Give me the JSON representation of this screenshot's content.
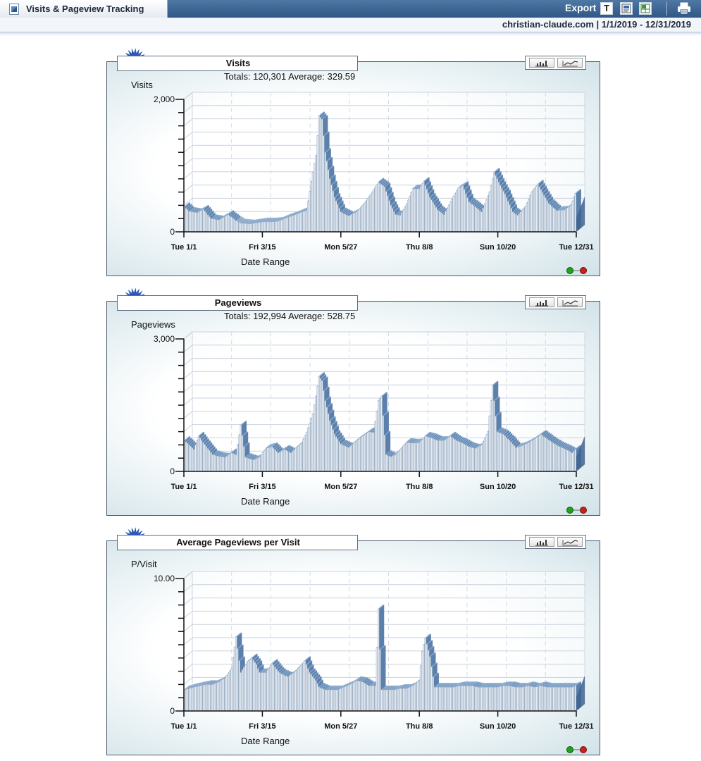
{
  "header": {
    "tab_title": "Visits & Pageview Tracking",
    "export_label": "Export",
    "export_text_label": "T",
    "site_and_range": "christian-claude.com  |  1/1/2019 - 12/31/2019"
  },
  "colors": {
    "bar_front": "#d9e2ee",
    "bar_side": "#5a7ea8",
    "bar_top": "#8eadd0",
    "grid": "#c9d2dc"
  },
  "chart_data": [
    {
      "type": "bar",
      "title": "Visits",
      "totals": "Totals: 120,301   Average: 329.59",
      "ylabel": "Visits",
      "xlabel": "Date Range",
      "ylim": [
        0,
        2000
      ],
      "y_tick_labels": [
        "0",
        "2,000"
      ],
      "x_tick_labels": [
        "Tue 1/1",
        "Fri 3/15",
        "Mon 5/27",
        "Thu 8/8",
        "Sun 10/20",
        "Tue 12/31"
      ],
      "knots": [
        [
          0,
          380
        ],
        [
          3,
          310
        ],
        [
          8,
          290
        ],
        [
          12,
          340
        ],
        [
          17,
          200
        ],
        [
          22,
          180
        ],
        [
          28,
          260
        ],
        [
          33,
          170
        ],
        [
          36,
          130
        ],
        [
          42,
          120
        ],
        [
          50,
          150
        ],
        [
          56,
          150
        ],
        [
          60,
          160
        ],
        [
          65,
          210
        ],
        [
          70,
          250
        ],
        [
          75,
          300
        ],
        [
          78,
          320
        ],
        [
          82,
          900
        ],
        [
          84,
          1150
        ],
        [
          86,
          1750
        ],
        [
          88,
          1700
        ],
        [
          90,
          1200
        ],
        [
          93,
          800
        ],
        [
          96,
          520
        ],
        [
          100,
          300
        ],
        [
          105,
          240
        ],
        [
          110,
          300
        ],
        [
          115,
          430
        ],
        [
          120,
          600
        ],
        [
          124,
          750
        ],
        [
          128,
          680
        ],
        [
          132,
          400
        ],
        [
          135,
          260
        ],
        [
          138,
          250
        ],
        [
          142,
          420
        ],
        [
          146,
          650
        ],
        [
          150,
          650
        ],
        [
          153,
          760
        ],
        [
          157,
          520
        ],
        [
          162,
          330
        ],
        [
          166,
          260
        ],
        [
          170,
          450
        ],
        [
          175,
          660
        ],
        [
          178,
          700
        ],
        [
          182,
          450
        ],
        [
          186,
          380
        ],
        [
          190,
          300
        ],
        [
          195,
          600
        ],
        [
          198,
          900
        ],
        [
          202,
          700
        ],
        [
          205,
          570
        ],
        [
          210,
          300
        ],
        [
          213,
          250
        ],
        [
          218,
          380
        ],
        [
          222,
          600
        ],
        [
          226,
          720
        ],
        [
          229,
          590
        ],
        [
          233,
          430
        ],
        [
          238,
          320
        ],
        [
          243,
          330
        ],
        [
          247,
          400
        ],
        [
          250,
          580
        ]
      ]
    },
    {
      "type": "bar",
      "title": "Pageviews",
      "totals": "Totals: 192,994   Average: 528.75",
      "ylabel": "Pageviews",
      "xlabel": "Date Range",
      "ylim": [
        0,
        3000
      ],
      "y_tick_labels": [
        "0",
        "3,000"
      ],
      "x_tick_labels": [
        "Tue 1/1",
        "Fri 3/15",
        "Mon 5/27",
        "Thu 8/8",
        "Sun 10/20",
        "Tue 12/31"
      ],
      "knots": [
        [
          0,
          700
        ],
        [
          3,
          600
        ],
        [
          6,
          500
        ],
        [
          9,
          800
        ],
        [
          12,
          650
        ],
        [
          15,
          520
        ],
        [
          18,
          380
        ],
        [
          22,
          340
        ],
        [
          26,
          320
        ],
        [
          30,
          420
        ],
        [
          33,
          380
        ],
        [
          36,
          1050
        ],
        [
          39,
          320
        ],
        [
          44,
          260
        ],
        [
          48,
          320
        ],
        [
          52,
          520
        ],
        [
          56,
          560
        ],
        [
          60,
          420
        ],
        [
          64,
          500
        ],
        [
          68,
          420
        ],
        [
          72,
          560
        ],
        [
          75,
          650
        ],
        [
          78,
          880
        ],
        [
          82,
          1300
        ],
        [
          84,
          1700
        ],
        [
          86,
          2150
        ],
        [
          88,
          2050
        ],
        [
          90,
          1600
        ],
        [
          93,
          1150
        ],
        [
          96,
          840
        ],
        [
          100,
          620
        ],
        [
          105,
          540
        ],
        [
          110,
          700
        ],
        [
          114,
          800
        ],
        [
          118,
          900
        ],
        [
          121,
          880
        ],
        [
          124,
          1600
        ],
        [
          126,
          1700
        ],
        [
          129,
          380
        ],
        [
          132,
          330
        ],
        [
          135,
          380
        ],
        [
          138,
          500
        ],
        [
          142,
          660
        ],
        [
          146,
          640
        ],
        [
          150,
          650
        ],
        [
          154,
          800
        ],
        [
          158,
          760
        ],
        [
          162,
          700
        ],
        [
          166,
          700
        ],
        [
          170,
          800
        ],
        [
          174,
          700
        ],
        [
          178,
          640
        ],
        [
          182,
          560
        ],
        [
          186,
          520
        ],
        [
          190,
          600
        ],
        [
          194,
          900
        ],
        [
          197,
          1950
        ],
        [
          200,
          900
        ],
        [
          204,
          840
        ],
        [
          208,
          700
        ],
        [
          212,
          540
        ],
        [
          216,
          580
        ],
        [
          220,
          650
        ],
        [
          224,
          740
        ],
        [
          228,
          840
        ],
        [
          232,
          740
        ],
        [
          236,
          640
        ],
        [
          240,
          560
        ],
        [
          244,
          500
        ],
        [
          248,
          420
        ],
        [
          250,
          500
        ]
      ]
    },
    {
      "type": "bar",
      "title": "Average Pageviews per Visit",
      "totals": "",
      "ylabel": "P/Visit",
      "xlabel": "Date Range",
      "ylim": [
        0,
        10
      ],
      "y_tick_labels": [
        "0",
        "10.00"
      ],
      "x_tick_labels": [
        "Tue 1/1",
        "Fri 3/15",
        "Mon 5/27",
        "Thu 8/8",
        "Sun 10/20",
        "Tue 12/31"
      ],
      "knots": [
        [
          0,
          1.6
        ],
        [
          3,
          1.7
        ],
        [
          6,
          1.8
        ],
        [
          10,
          1.9
        ],
        [
          14,
          2.0
        ],
        [
          18,
          2.0
        ],
        [
          22,
          2.2
        ],
        [
          26,
          2.5
        ],
        [
          30,
          3.2
        ],
        [
          33,
          5.6
        ],
        [
          36,
          2.9
        ],
        [
          40,
          3.7
        ],
        [
          43,
          4.0
        ],
        [
          46,
          3.5
        ],
        [
          48,
          2.9
        ],
        [
          52,
          2.9
        ],
        [
          56,
          3.6
        ],
        [
          60,
          3.0
        ],
        [
          62,
          2.8
        ],
        [
          66,
          2.6
        ],
        [
          70,
          2.9
        ],
        [
          74,
          3.4
        ],
        [
          77,
          3.8
        ],
        [
          80,
          2.9
        ],
        [
          84,
          2.3
        ],
        [
          86,
          1.8
        ],
        [
          90,
          1.6
        ],
        [
          94,
          1.6
        ],
        [
          98,
          1.6
        ],
        [
          102,
          1.8
        ],
        [
          106,
          2.0
        ],
        [
          110,
          2.3
        ],
        [
          114,
          2.2
        ],
        [
          118,
          1.9
        ],
        [
          122,
          1.9
        ],
        [
          124,
          7.7
        ],
        [
          126,
          1.6
        ],
        [
          130,
          1.6
        ],
        [
          134,
          1.6
        ],
        [
          138,
          1.7
        ],
        [
          142,
          1.7
        ],
        [
          146,
          1.9
        ],
        [
          150,
          2.3
        ],
        [
          152,
          4.5
        ],
        [
          154,
          5.5
        ],
        [
          157,
          4.1
        ],
        [
          160,
          1.8
        ],
        [
          164,
          1.8
        ],
        [
          168,
          1.8
        ],
        [
          172,
          1.8
        ],
        [
          176,
          1.9
        ],
        [
          180,
          1.9
        ],
        [
          184,
          1.9
        ],
        [
          188,
          1.8
        ],
        [
          192,
          1.8
        ],
        [
          196,
          1.8
        ],
        [
          200,
          1.8
        ],
        [
          204,
          1.9
        ],
        [
          208,
          1.9
        ],
        [
          212,
          1.8
        ],
        [
          216,
          1.8
        ],
        [
          220,
          1.9
        ],
        [
          224,
          1.8
        ],
        [
          228,
          1.9
        ],
        [
          232,
          1.8
        ],
        [
          236,
          1.8
        ],
        [
          240,
          1.8
        ],
        [
          244,
          1.8
        ],
        [
          248,
          1.8
        ],
        [
          250,
          1.9
        ]
      ]
    }
  ]
}
